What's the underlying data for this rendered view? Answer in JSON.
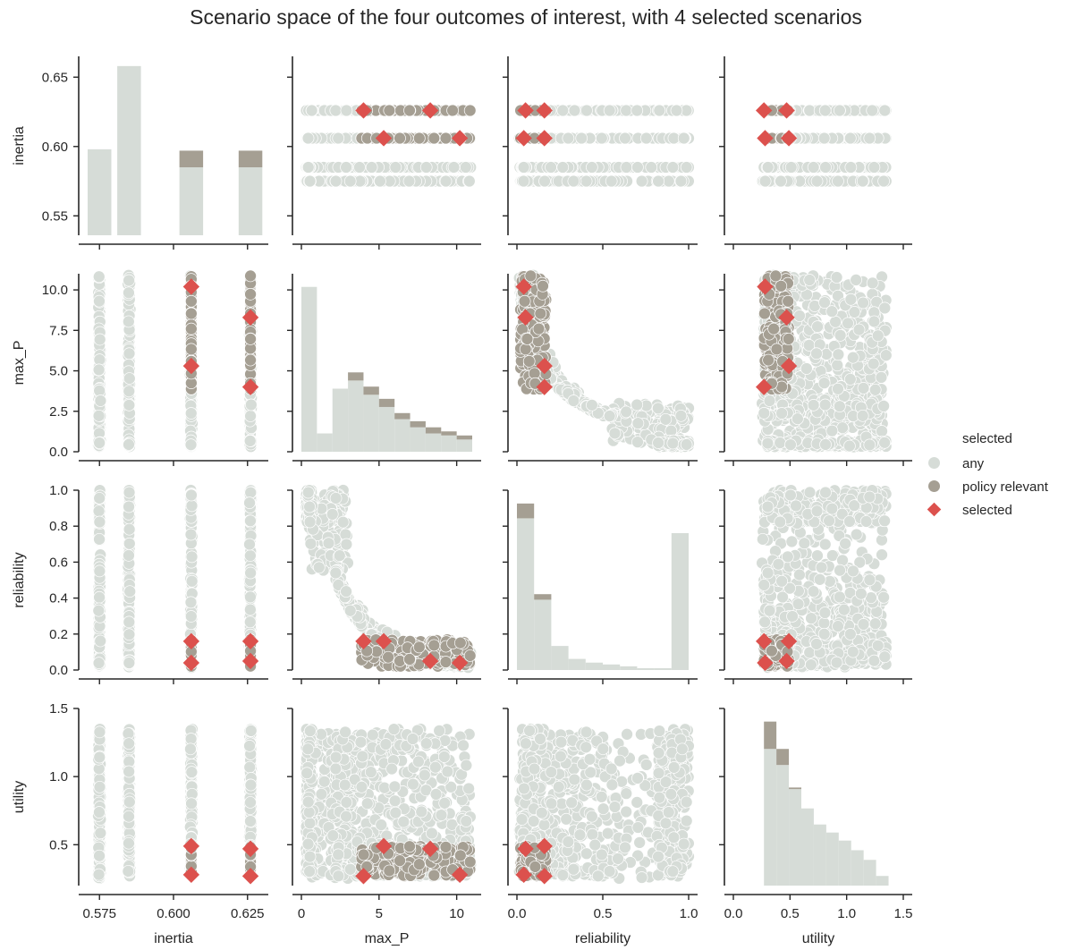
{
  "title": "Scenario space of the four outcomes of interest, with 4 selected scenarios",
  "colors": {
    "any": "#d6dcd7",
    "policy": "#a59f93",
    "selected": "#dc514d",
    "axis": "#262626"
  },
  "legend": {
    "title": "selected",
    "items": [
      {
        "label": "any",
        "marker": "circle",
        "color": "#d6dcd7"
      },
      {
        "label": "policy relevant",
        "marker": "circle",
        "color": "#a59f93"
      },
      {
        "label": "selected",
        "marker": "diamond",
        "color": "#dc514d"
      }
    ]
  },
  "chart_data": {
    "type": "scatter",
    "title": "Scenario space of the four outcomes of interest, with 4 selected scenarios",
    "variables": [
      {
        "name": "inertia",
        "xlabel": "inertia",
        "ylabel": "inertia",
        "lim": [
          0.571,
          0.629
        ],
        "ylim": [
          0.536,
          0.665
        ],
        "xticks": [
          "0.575",
          "0.600",
          "0.625"
        ],
        "xtickvals": [
          0.575,
          0.6,
          0.625
        ],
        "yticks": [
          "0.55",
          "0.60",
          "0.65"
        ],
        "ytickvals": [
          0.55,
          0.6,
          0.65
        ],
        "discrete": [
          0.575,
          0.585,
          0.606,
          0.626
        ]
      },
      {
        "name": "max_P",
        "xlabel": "max_P",
        "ylabel": "max_P",
        "lim": [
          0,
          11
        ],
        "ylim": [
          0,
          11
        ],
        "xticks": [
          "0",
          "5",
          "10"
        ],
        "xtickvals": [
          0,
          5,
          10
        ],
        "yticks": [
          "0.0",
          "2.5",
          "5.0",
          "7.5",
          "10.0"
        ],
        "ytickvals": [
          0,
          2.5,
          5,
          7.5,
          10
        ]
      },
      {
        "name": "reliability",
        "xlabel": "reliability",
        "ylabel": "reliability",
        "lim": [
          0,
          1
        ],
        "ylim": [
          0,
          1
        ],
        "xticks": [
          "0.0",
          "0.5",
          "1.0"
        ],
        "xtickvals": [
          0,
          0.5,
          1
        ],
        "yticks": [
          "0.0",
          "0.2",
          "0.4",
          "0.6",
          "0.8",
          "1.0"
        ],
        "ytickvals": [
          0,
          0.2,
          0.4,
          0.6,
          0.8,
          1
        ]
      },
      {
        "name": "utility",
        "xlabel": "utility",
        "ylabel": "utility",
        "lim": [
          0,
          1.5
        ],
        "ylim": [
          0.2,
          1.5
        ],
        "xticks": [
          "0.0",
          "0.5",
          "1.0",
          "1.5"
        ],
        "xtickvals": [
          0,
          0.5,
          1,
          1.5
        ],
        "yticks": [
          "0.5",
          "1.0",
          "1.5"
        ],
        "ytickvals": [
          0.5,
          1,
          1.5
        ]
      }
    ],
    "selected": [
      {
        "inertia": 0.626,
        "max_P": 4.0,
        "reliability": 0.16,
        "utility": 0.27
      },
      {
        "inertia": 0.626,
        "max_P": 8.3,
        "reliability": 0.05,
        "utility": 0.47
      },
      {
        "inertia": 0.606,
        "max_P": 5.3,
        "reliability": 0.16,
        "utility": 0.49
      },
      {
        "inertia": 0.606,
        "max_P": 10.2,
        "reliability": 0.04,
        "utility": 0.28
      }
    ],
    "policy_relevant_region": {
      "max_P": [
        3.8,
        11
      ],
      "reliability": [
        0.02,
        0.17
      ],
      "utility": [
        0.27,
        0.49
      ],
      "inertia": [
        0.606,
        0.626
      ]
    },
    "histograms": {
      "inertia": {
        "bins": [
          0.573,
          0.577,
          0.583,
          0.587,
          0.604,
          0.608,
          0.624,
          0.628
        ],
        "any": [
          0.598,
          0.658,
          0.585,
          0.585
        ],
        "policy": [
          0,
          0,
          0.597,
          0.597
        ],
        "bars": [
          [
            0.571,
            0.579
          ],
          [
            0.581,
            0.589
          ],
          [
            0.602,
            0.61
          ],
          [
            0.622,
            0.63
          ]
        ]
      },
      "max_P": {
        "edges": [
          0,
          1,
          2,
          3,
          4,
          5,
          6,
          7,
          8,
          9,
          10,
          11
        ],
        "any": [
          8.1,
          0.9,
          3.1,
          3.5,
          2.8,
          2.2,
          1.6,
          1.2,
          0.9,
          0.8,
          0.6
        ],
        "policy": [
          0,
          0,
          0,
          0.4,
          0.4,
          0.4,
          0.3,
          0.3,
          0.3,
          0.2,
          0.2
        ]
      },
      "reliability": {
        "edges": [
          0,
          0.1,
          0.2,
          0.3,
          0.4,
          0.5,
          0.6,
          0.7,
          0.8,
          0.9,
          1.0
        ],
        "any": [
          0.82,
          0.38,
          0.13,
          0.06,
          0.04,
          0.03,
          0.02,
          0.01,
          0.01,
          0.74
        ],
        "policy": [
          0.08,
          0.03,
          0,
          0,
          0,
          0,
          0,
          0,
          0,
          0
        ]
      },
      "utility": {
        "edges": [
          0.27,
          0.38,
          0.49,
          0.6,
          0.71,
          0.82,
          0.93,
          1.04,
          1.15,
          1.26,
          1.37
        ],
        "any": [
          0.85,
          0.75,
          0.6,
          0.48,
          0.38,
          0.33,
          0.28,
          0.22,
          0.16,
          0.06
        ],
        "policy": [
          0.17,
          0.1,
          0.01,
          0,
          0,
          0,
          0,
          0,
          0,
          0
        ]
      }
    }
  }
}
